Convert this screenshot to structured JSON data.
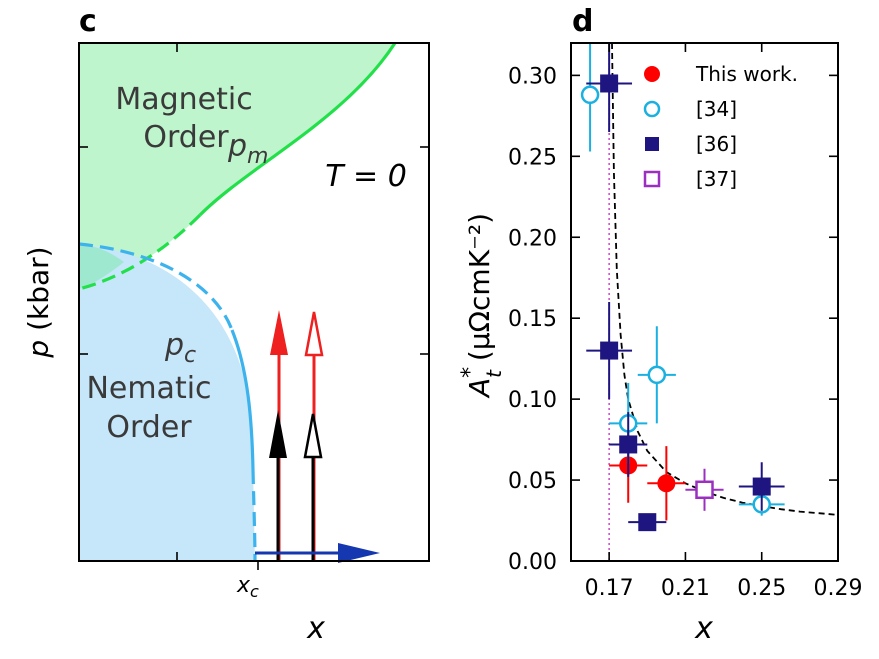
{
  "panel_c": {
    "label": "c",
    "ylabel_italic": "p",
    "ylabel_unit": "(kbar)",
    "xlabel": "x",
    "xc_label": "x",
    "xc_sub": "c",
    "region_magnetic_line1": "Magnetic",
    "region_magnetic_line2": "Order",
    "region_nematic_line1": "Nematic",
    "region_nematic_line2": "Order",
    "pm_label": "p",
    "pm_sub": "m",
    "pc_label": "p",
    "pc_sub": "c",
    "temperature_label": "T = 0",
    "colors": {
      "magnetic_fill": "#bff5cc",
      "magnetic_line": "#22e04a",
      "nematic_fill": "#c6e6fa",
      "nematic_line": "#3db3ee",
      "overlap_fill": "#9fe8d0",
      "arrow_red": "#ee2020",
      "arrow_black": "#000000",
      "arrow_blue": "#1538b0"
    }
  },
  "chart_data": {
    "type": "scatter",
    "panel_label": "d",
    "xlabel": "x",
    "ylabel": "A_t* (μΩcmK⁻²)",
    "ylabel_main": "A",
    "ylabel_sup": "*",
    "ylabel_sub": "t",
    "ylabel_unit": "(μΩcmK⁻²)",
    "xlim": [
      0.15,
      0.29
    ],
    "ylim": [
      0.0,
      0.32
    ],
    "xticks": [
      0.17,
      0.21,
      0.25,
      0.29
    ],
    "xtick_labels": [
      "0.17",
      "0.21",
      "0.25",
      "0.29"
    ],
    "yticks": [
      0.0,
      0.05,
      0.1,
      0.15,
      0.2,
      0.25,
      0.3
    ],
    "ytick_labels": [
      "0.00",
      "0.05",
      "0.10",
      "0.15",
      "0.20",
      "0.25",
      "0.30"
    ],
    "grid": false,
    "legend_position": "top-right",
    "vertical_line_x": 0.17,
    "fit_curve": {
      "style": "dashed",
      "color": "#000000",
      "asymptote_x": 0.17,
      "points": [
        [
          0.1715,
          0.32
        ],
        [
          0.1725,
          0.24
        ],
        [
          0.174,
          0.18
        ],
        [
          0.176,
          0.14
        ],
        [
          0.178,
          0.115
        ],
        [
          0.18,
          0.1
        ],
        [
          0.185,
          0.08
        ],
        [
          0.19,
          0.068
        ],
        [
          0.2,
          0.055
        ],
        [
          0.21,
          0.048
        ],
        [
          0.22,
          0.043
        ],
        [
          0.23,
          0.039
        ],
        [
          0.24,
          0.036
        ],
        [
          0.25,
          0.034
        ],
        [
          0.26,
          0.032
        ],
        [
          0.27,
          0.0305
        ],
        [
          0.28,
          0.0295
        ],
        [
          0.29,
          0.0285
        ]
      ]
    },
    "series": [
      {
        "name": "This work.",
        "marker": "circle",
        "filled": true,
        "color": "#ff0000",
        "points": [
          {
            "x": 0.18,
            "y": 0.059,
            "xerr": 0.01,
            "yerr": 0.023
          },
          {
            "x": 0.2,
            "y": 0.048,
            "xerr": 0.01,
            "yerr": 0.023
          }
        ]
      },
      {
        "name": "[34]",
        "marker": "circle",
        "filled": false,
        "color": "#1ab0e0",
        "points": [
          {
            "x": 0.16,
            "y": 0.288,
            "xerr": 0.0,
            "yerr": 0.035
          },
          {
            "x": 0.18,
            "y": 0.085,
            "xerr": 0.01,
            "yerr": 0.025
          },
          {
            "x": 0.195,
            "y": 0.115,
            "xerr": 0.01,
            "yerr": 0.03
          },
          {
            "x": 0.25,
            "y": 0.035,
            "xerr": 0.012,
            "yerr": 0.007
          }
        ]
      },
      {
        "name": "[36]",
        "marker": "square",
        "filled": true,
        "color": "#1e1580",
        "points": [
          {
            "x": 0.17,
            "y": 0.295,
            "xerr": 0.012,
            "yerr": 0.03
          },
          {
            "x": 0.17,
            "y": 0.13,
            "xerr": 0.012,
            "yerr": 0.03
          },
          {
            "x": 0.18,
            "y": 0.072,
            "xerr": 0.01,
            "yerr": 0.02
          },
          {
            "x": 0.19,
            "y": 0.024,
            "xerr": 0.01,
            "yerr": 0.0
          },
          {
            "x": 0.25,
            "y": 0.046,
            "xerr": 0.012,
            "yerr": 0.015
          }
        ]
      },
      {
        "name": "[37]",
        "marker": "square",
        "filled": false,
        "color": "#9b30c0",
        "points": [
          {
            "x": 0.22,
            "y": 0.044,
            "xerr": 0.01,
            "yerr": 0.013
          }
        ]
      }
    ]
  }
}
